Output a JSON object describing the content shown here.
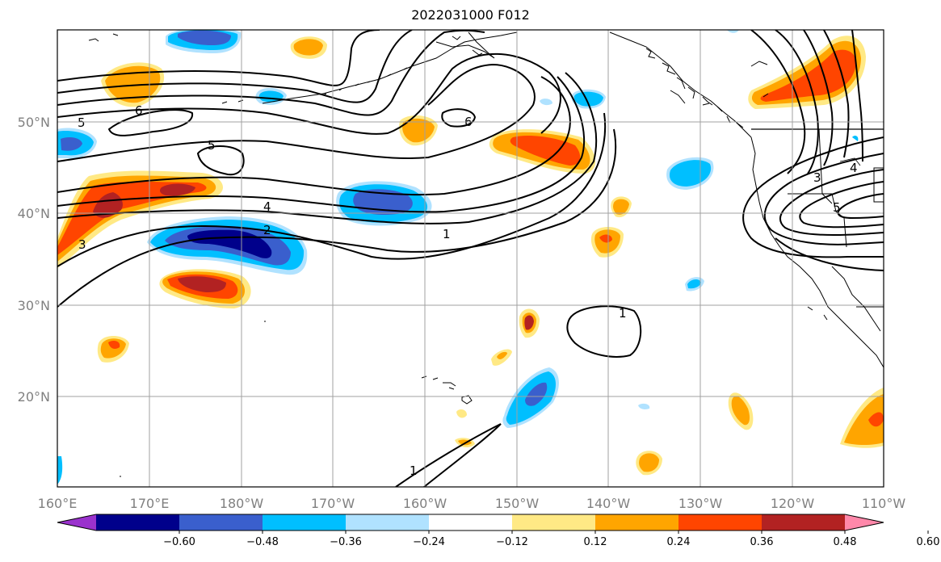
{
  "title": "2022031000 F012",
  "map": {
    "projection": "equirectangular",
    "lon_range": [
      "160°E",
      "110°W"
    ],
    "lat_range": [
      "~10°N",
      "~60°N"
    ],
    "gridlines": true,
    "x_ticks": [
      "160°E",
      "170°E",
      "180°W",
      "170°W",
      "160°W",
      "150°W",
      "140°W",
      "130°W",
      "120°W",
      "110°W"
    ],
    "y_ticks": [
      "50°N",
      "40°N",
      "30°N",
      "20°N"
    ]
  },
  "contour_labels": [
    "5",
    "6",
    "5",
    "6",
    "4",
    "2",
    "3",
    "1",
    "1",
    "1",
    "3",
    "4",
    "5"
  ],
  "colorbar": {
    "colors": [
      "#9a32cd",
      "#00008b",
      "#3a5fcd",
      "#00bfff",
      "#b0e2ff",
      "#ffffff",
      "#ffe985",
      "#ffa500",
      "#ff4500",
      "#b22222",
      "#ff88aa"
    ],
    "tick_labels": [
      "−0.60",
      "−0.48",
      "−0.36",
      "−0.24",
      "−0.12",
      "0.12",
      "0.24",
      "0.36",
      "0.48",
      "0.60"
    ]
  },
  "fill_colors": {
    "neg1": "#b0e2ff",
    "neg2": "#00bfff",
    "neg3": "#3a5fcd",
    "neg4": "#00008b",
    "pos1": "#ffe985",
    "pos2": "#ffa500",
    "pos3": "#ff4500",
    "pos4": "#b22222"
  }
}
